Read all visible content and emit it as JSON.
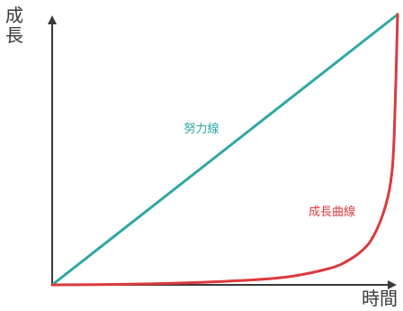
{
  "chart_data": {
    "type": "line",
    "ylabel": "成長",
    "xlabel": "時間",
    "xlim": [
      0,
      1
    ],
    "ylim": [
      0,
      1
    ],
    "grid": false,
    "colors": {
      "effort": "#2fa7a6",
      "growth": "#dc3a3e",
      "axis": "#3a3a3a"
    },
    "series": [
      {
        "name": "努力線",
        "color": "#2fa7a6",
        "x": [
          0,
          1
        ],
        "y": [
          0,
          1
        ]
      },
      {
        "name": "成長曲線",
        "color": "#dc3a3e",
        "x": [
          0,
          0.2,
          0.4,
          0.6,
          0.7,
          0.8,
          0.85,
          0.9,
          0.93,
          0.96,
          0.98,
          0.99,
          1.0
        ],
        "y": [
          0,
          0.002,
          0.008,
          0.02,
          0.033,
          0.06,
          0.085,
          0.13,
          0.18,
          0.27,
          0.38,
          0.55,
          1.0
        ]
      }
    ]
  }
}
